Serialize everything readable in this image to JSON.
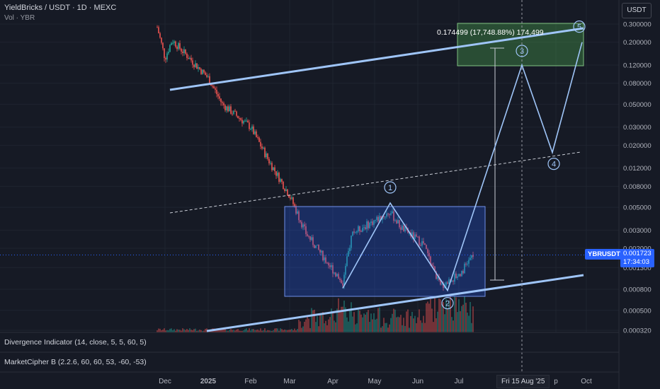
{
  "header": {
    "title": "YieldBricks / USDT · 1D · MEXC",
    "volume_label": "Vol · YBR"
  },
  "currency_button": "USDT",
  "indicators": {
    "divergence": "Divergence Indicator (14, close, 5, 5, 60, 5)",
    "marketcipher": "MarketCipher B (2.2.6, 60, 60, 53, -60, -53)"
  },
  "price_axis": {
    "ticks": [
      "0.300000",
      "0.200000",
      "0.120000",
      "0.080000",
      "0.050000",
      "0.030000",
      "0.020000",
      "0.012000",
      "0.008000",
      "0.005000",
      "0.003000",
      "0.002000",
      "0.001300",
      "0.000800",
      "0.000500",
      "0.000320"
    ],
    "symbol_tag": "YBRUSDT",
    "last_price": "0.001723",
    "countdown": "17:34:03"
  },
  "time_axis": {
    "ticks": [
      "Dec",
      "2025",
      "Feb",
      "Mar",
      "Apr",
      "May",
      "Jun",
      "Jul",
      "p",
      "Oct"
    ],
    "crosshair_date": "Fri 15 Aug '25"
  },
  "measure_label": "0.174499 (17,748.88%) 174,499",
  "wave_labels": [
    "1",
    "2",
    "3",
    "4",
    "5"
  ],
  "colors": {
    "background": "#161a25",
    "up": "#26a69a",
    "down": "#ef5350",
    "trendline": "#9fc5f8",
    "box_blue": "#2a3f8f",
    "box_green": "#2e6b3a",
    "accent": "#2962ff"
  },
  "chart_data": {
    "type": "candlestick",
    "title": "YieldBricks / USDT · 1D · MEXC",
    "y_scale": "log",
    "ylim": [
      0.00032,
      0.3
    ],
    "x_categories": [
      "Dec",
      "2025",
      "Feb",
      "Mar",
      "Apr",
      "May",
      "Jun",
      "Jul",
      "p",
      "Oct"
    ],
    "price_path": [
      {
        "x": "Nov-28",
        "y": 0.28
      },
      {
        "x": "Dec",
        "y": 0.14
      },
      {
        "x": "Dec-10",
        "y": 0.21
      },
      {
        "x": "2025",
        "y": 0.09
      },
      {
        "x": "Jan-20",
        "y": 0.05
      },
      {
        "x": "Feb",
        "y": 0.03
      },
      {
        "x": "Feb-20",
        "y": 0.014
      },
      {
        "x": "Mar",
        "y": 0.0065
      },
      {
        "x": "Mar-15",
        "y": 0.0028
      },
      {
        "x": "Apr",
        "y": 0.00092
      },
      {
        "x": "Apr-20",
        "y": 0.0028
      },
      {
        "x": "May",
        "y": 0.0045
      },
      {
        "x": "May-15",
        "y": 0.0032
      },
      {
        "x": "Jun",
        "y": 0.0022
      },
      {
        "x": "Jun-15",
        "y": 0.00085
      },
      {
        "x": "Jul",
        "y": 0.00115
      },
      {
        "x": "Jul-10",
        "y": 0.001723
      }
    ],
    "projection_path": [
      {
        "x": "Apr",
        "y": 0.00082,
        "label": ""
      },
      {
        "x": "May",
        "y": 0.0055,
        "label": "1"
      },
      {
        "x": "Jun-20",
        "y": 0.00078,
        "label": "2"
      },
      {
        "x": "Aug",
        "y": 0.12,
        "label": "3"
      },
      {
        "x": "Sep",
        "y": 0.017,
        "label": "4"
      },
      {
        "x": "Oct",
        "y": 0.2,
        "label": "5"
      }
    ],
    "annotations": [
      "0.174499 (17,748.88%) 174,499",
      "Fri 15 Aug '25"
    ]
  }
}
